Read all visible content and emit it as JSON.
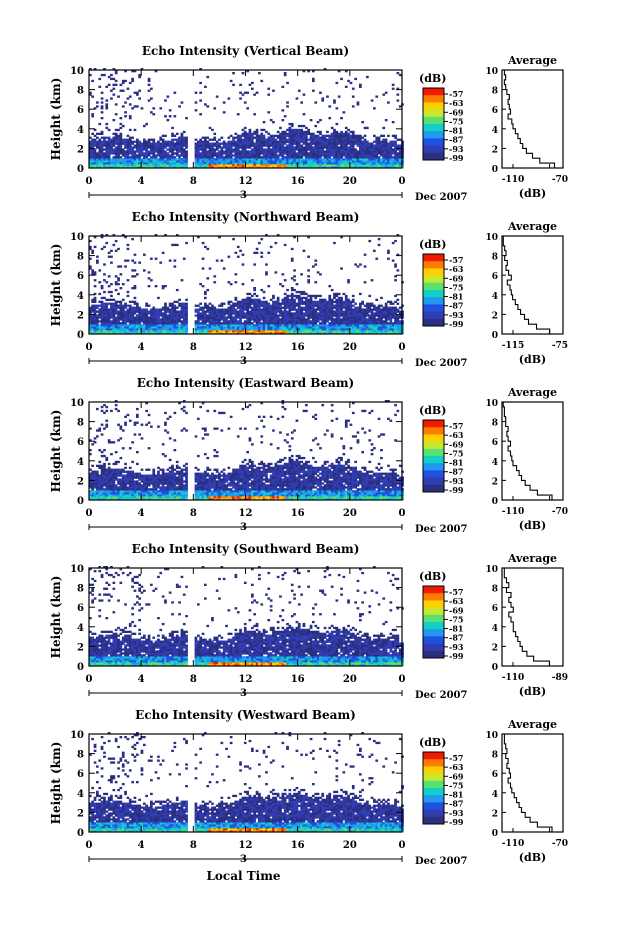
{
  "figure": {
    "xlabel": "Local Time",
    "date_label": "Dec 2007",
    "date_day": "3",
    "colorbar_unit": "(dB)",
    "colorbar_ticks": [
      "-57",
      "-63",
      "-69",
      "-75",
      "-81",
      "-87",
      "-93",
      "-99"
    ],
    "colorbar_colors": [
      "#f21b00",
      "#ff7a00",
      "#ffd000",
      "#c8e830",
      "#58e070",
      "#10d0c8",
      "#2098f0",
      "#2050e0",
      "#303cb0",
      "#2a2f80"
    ],
    "axis_bg": "#ffffff",
    "data_color_dark": "#2a2f80"
  },
  "chart_data": [
    {
      "type": "heatmap",
      "title": "Echo Intensity (Vertical Beam)",
      "xlabel": "",
      "ylabel": "Height (km)",
      "xlim": [
        0,
        24
      ],
      "ylim": [
        0,
        10
      ],
      "xticks": [
        "0",
        "4",
        "8",
        "12",
        "16",
        "20",
        "0"
      ],
      "yticks": [
        "0",
        "2",
        "4",
        "6",
        "8",
        "10"
      ],
      "data_gap_hours": [
        7.6,
        8.0
      ],
      "profile": {
        "title": "Average",
        "xlabel": "(dB)",
        "xticks": [
          "-110",
          "-70"
        ],
        "xlim": [
          -115,
          -65
        ],
        "yticks": [
          "0",
          "2",
          "4",
          "6",
          "8",
          "10"
        ],
        "height_km": [
          0,
          0.5,
          1,
          1.5,
          2,
          2.5,
          3,
          3.5,
          4,
          4.5,
          5,
          5.5,
          6,
          6.5,
          7,
          7.5,
          8,
          8.5,
          9,
          9.5,
          10
        ],
        "db": [
          -66,
          -72,
          -84,
          -90,
          -95,
          -98,
          -100,
          -102,
          -104,
          -106,
          -107,
          -110,
          -108,
          -109,
          -110,
          -109,
          -111,
          -112,
          -113,
          -112,
          -113
        ]
      }
    },
    {
      "type": "heatmap",
      "title": "Echo Intensity (Northward Beam)",
      "xlabel": "",
      "ylabel": "Height (km)",
      "xlim": [
        0,
        24
      ],
      "ylim": [
        0,
        10
      ],
      "xticks": [
        "0",
        "4",
        "8",
        "12",
        "16",
        "20",
        "0"
      ],
      "yticks": [
        "0",
        "2",
        "4",
        "6",
        "8",
        "10"
      ],
      "data_gap_hours": [
        7.6,
        8.0
      ],
      "profile": {
        "title": "Average",
        "xlabel": "(dB)",
        "xticks": [
          "-115",
          "-75"
        ],
        "xlim": [
          -118,
          -72
        ],
        "yticks": [
          "0",
          "2",
          "4",
          "6",
          "8",
          "10"
        ],
        "height_km": [
          0,
          0.5,
          1,
          1.5,
          2,
          2.5,
          3,
          3.5,
          4,
          4.5,
          5,
          5.5,
          6,
          6.5,
          7,
          7.5,
          8,
          8.5,
          9,
          9.5,
          10
        ],
        "db": [
          -75,
          -82,
          -92,
          -98,
          -101,
          -104,
          -106,
          -108,
          -110,
          -111,
          -112,
          -114,
          -111,
          -113,
          -115,
          -114,
          -116,
          -115,
          -116,
          -117,
          -117
        ]
      }
    },
    {
      "type": "heatmap",
      "title": "Echo Intensity (Eastward Beam)",
      "xlabel": "",
      "ylabel": "Height (km)",
      "xlim": [
        0,
        24
      ],
      "ylim": [
        0,
        10
      ],
      "xticks": [
        "0",
        "4",
        "8",
        "12",
        "16",
        "20",
        "0"
      ],
      "yticks": [
        "0",
        "2",
        "4",
        "6",
        "8",
        "10"
      ],
      "data_gap_hours": [
        7.6,
        8.0
      ],
      "profile": {
        "title": "Average",
        "xlabel": "(dB)",
        "xticks": [
          "-110",
          "-70"
        ],
        "xlim": [
          -115,
          -65
        ],
        "yticks": [
          "0",
          "2",
          "4",
          "6",
          "8",
          "10"
        ],
        "height_km": [
          0,
          0.5,
          1,
          1.5,
          2,
          2.5,
          3,
          3.5,
          4,
          4.5,
          5,
          5.5,
          6,
          6.5,
          7,
          7.5,
          8,
          8.5,
          9,
          9.5,
          10
        ],
        "db": [
          -67,
          -74,
          -86,
          -92,
          -96,
          -99,
          -101,
          -103,
          -106,
          -107,
          -108,
          -110,
          -108,
          -110,
          -111,
          -110,
          -112,
          -112,
          -113,
          -113,
          -114
        ]
      }
    },
    {
      "type": "heatmap",
      "title": "Echo Intensity (Southward Beam)",
      "xlabel": "",
      "ylabel": "Height (km)",
      "xlim": [
        0,
        24
      ],
      "ylim": [
        0,
        10
      ],
      "xticks": [
        "0",
        "4",
        "8",
        "12",
        "16",
        "20",
        "0"
      ],
      "yticks": [
        "0",
        "2",
        "4",
        "6",
        "8",
        "10"
      ],
      "data_gap_hours": [
        7.6,
        8.0
      ],
      "profile": {
        "title": "Average",
        "xlabel": "(dB)",
        "xticks": [
          "-110",
          "-89"
        ],
        "xlim": [
          -113,
          -86
        ],
        "yticks": [
          "0",
          "2",
          "4",
          "6",
          "8",
          "10"
        ],
        "height_km": [
          0,
          0.5,
          1,
          1.5,
          2,
          2.5,
          3,
          3.5,
          4,
          4.5,
          5,
          5.5,
          6,
          6.5,
          7,
          7.5,
          8,
          8.5,
          9,
          9.5,
          10
        ],
        "db": [
          -87,
          -92,
          -99,
          -102,
          -104,
          -105,
          -106,
          -107,
          -108,
          -108,
          -109,
          -110,
          -108,
          -109,
          -110,
          -109,
          -111,
          -110,
          -111,
          -112,
          -112
        ]
      }
    },
    {
      "type": "heatmap",
      "title": "Echo Intensity (Westward Beam)",
      "xlabel": "Local Time",
      "ylabel": "Height (km)",
      "xlim": [
        0,
        24
      ],
      "ylim": [
        0,
        10
      ],
      "xticks": [
        "0",
        "4",
        "8",
        "12",
        "16",
        "20",
        "0"
      ],
      "yticks": [
        "0",
        "2",
        "4",
        "6",
        "8",
        "10"
      ],
      "data_gap_hours": [
        7.6,
        8.0
      ],
      "profile": {
        "title": "Average",
        "xlabel": "(dB)",
        "xticks": [
          "-110",
          "-70"
        ],
        "xlim": [
          -115,
          -65
        ],
        "yticks": [
          "0",
          "2",
          "4",
          "6",
          "8",
          "10"
        ],
        "height_km": [
          0,
          0.5,
          1,
          1.5,
          2,
          2.5,
          3,
          3.5,
          4,
          4.5,
          5,
          5.5,
          6,
          6.5,
          7,
          7.5,
          8,
          8.5,
          9,
          9.5,
          10
        ],
        "db": [
          -68,
          -74,
          -86,
          -92,
          -96,
          -99,
          -101,
          -103,
          -105,
          -107,
          -108,
          -110,
          -108,
          -109,
          -111,
          -110,
          -112,
          -111,
          -112,
          -113,
          -113
        ]
      }
    }
  ]
}
